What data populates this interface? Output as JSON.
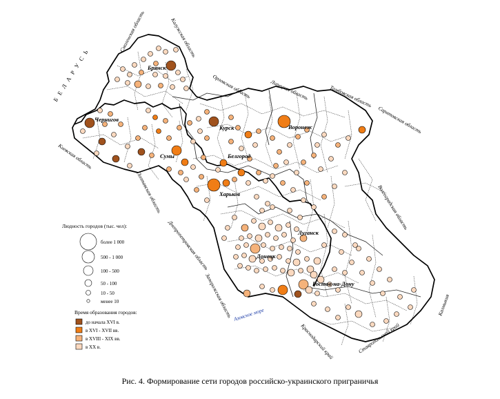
{
  "caption": "Рис. 4. Формирование сети городов российско-украинского приграничья",
  "colors": {
    "before_16": "#a0521d",
    "c16_17": "#f07d16",
    "c17_19": "#f5b27a",
    "c20": "#fbd9bf",
    "border_thick": "#000000",
    "border_thin": "#333333",
    "sea_label": "#1f3fa8"
  },
  "country_labels": {
    "belarus": "Б Е Л А Р У С Ь"
  },
  "region_labels": {
    "smolensk": "Смоленская область",
    "kaluga": "Калужская область",
    "oryol": "Орловская область",
    "lipetsk": "Липецкая область",
    "tambov": "Тамбовская область",
    "saratov": "Саратовская область",
    "kiev": "Киевская область",
    "poltava": "Полтавская область",
    "dnipro": "Днепропетровская область",
    "volgograd": "Волгоградская область",
    "zaporozhye": "Запорожская область",
    "krasnodar": "Краснодарский край",
    "stavropol": "Ставропольский край",
    "kalmykia": "Калмыкия"
  },
  "sea_labels": {
    "azov": "Азовское море"
  },
  "city_labels": {
    "bryansk": "Брянск",
    "chernigov": "Чернигов",
    "kursk": "Курск",
    "voronezh": "Воронеж",
    "sumy": "Сумы",
    "belgorod": "Белгород",
    "kharkov": "Харьков",
    "lugansk": "Луганск",
    "donetsk": "Донецк",
    "rostov": "Ростов-на-Дону"
  },
  "legend": {
    "size_title": "Людность городов (тыс. чел):",
    "size_items": [
      "более 1 000",
      "500 - 1 000",
      "100 - 500",
      "50 - 100",
      "10 - 50",
      "менее 10"
    ],
    "age_title": "Время образования городов:",
    "age_items": [
      "до начала XVI в.",
      "в XVI - XVII вв.",
      "в XVIII - XIX вв.",
      "в XX в."
    ]
  }
}
